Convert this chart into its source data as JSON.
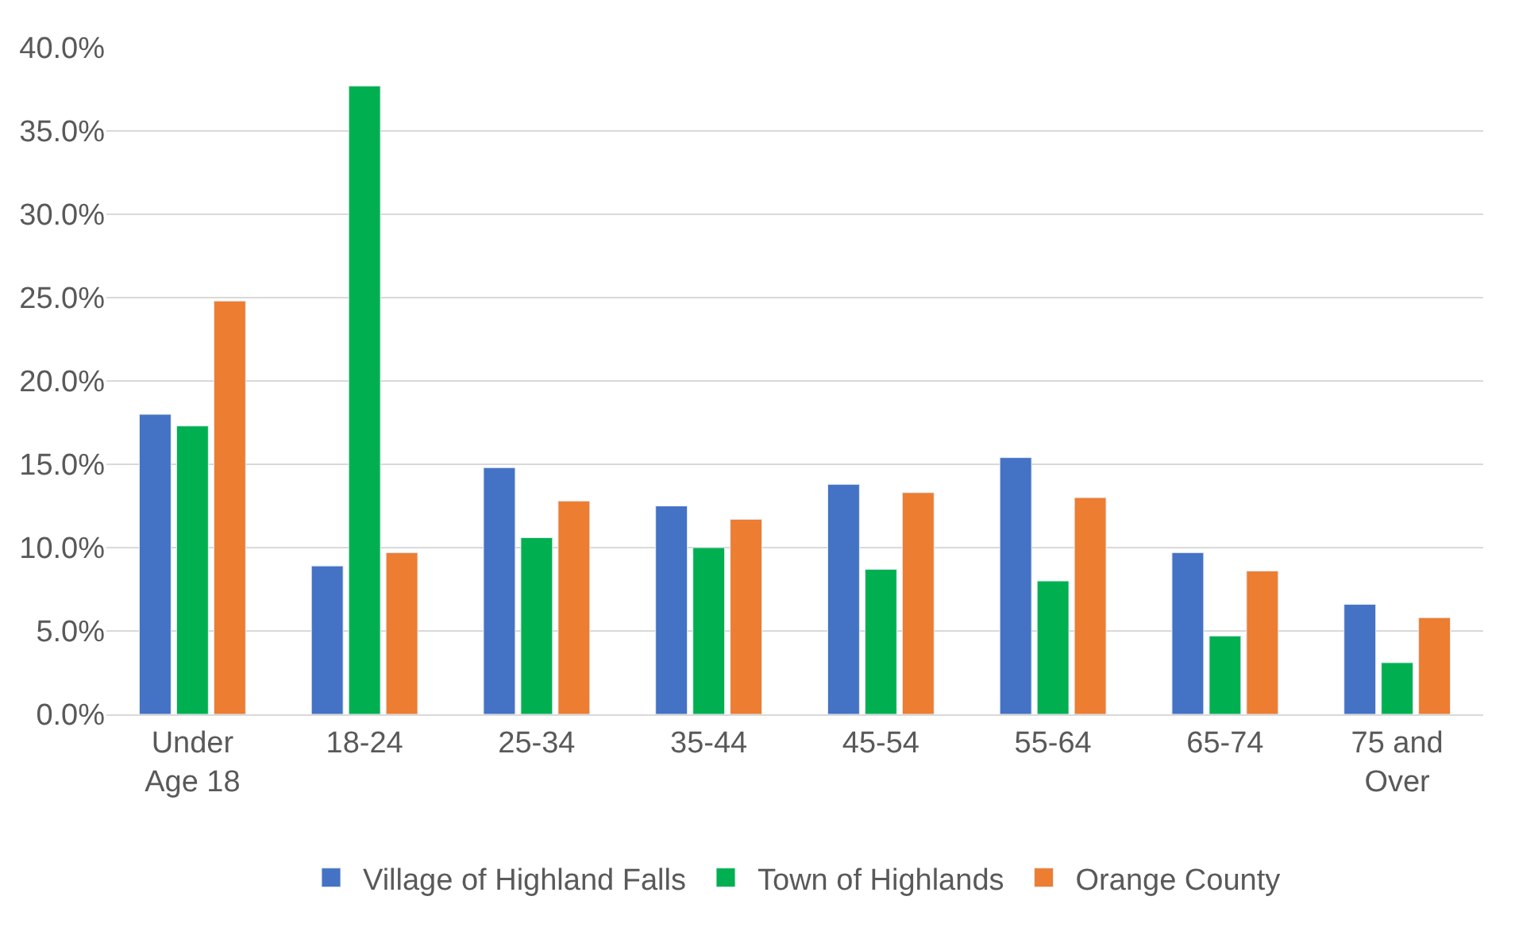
{
  "chart_data": {
    "type": "bar",
    "categories": [
      "Under Age 18",
      "18-24",
      "25-34",
      "35-44",
      "45-54",
      "55-64",
      "65-74",
      "75 and Over"
    ],
    "series": [
      {
        "name": "Village of Highland Falls",
        "color": "#4472c4",
        "values": [
          18.0,
          8.9,
          14.8,
          12.5,
          13.8,
          15.4,
          9.7,
          6.6
        ]
      },
      {
        "name": "Town of Highlands",
        "color": "#00b050",
        "values": [
          17.3,
          37.7,
          10.6,
          10.0,
          8.7,
          8.0,
          4.7,
          3.1
        ]
      },
      {
        "name": "Orange County",
        "color": "#ed7d31",
        "values": [
          24.8,
          9.7,
          12.8,
          11.7,
          13.3,
          13.0,
          8.6,
          5.8
        ]
      }
    ],
    "ylim": [
      0,
      40
    ],
    "yticks": [
      {
        "value": 0,
        "label": "0.0%"
      },
      {
        "value": 5,
        "label": "5.0%"
      },
      {
        "value": 10,
        "label": "10.0%"
      },
      {
        "value": 15,
        "label": "15.0%"
      },
      {
        "value": 20,
        "label": "20.0%"
      },
      {
        "value": 25,
        "label": "25.0%"
      },
      {
        "value": 30,
        "label": "30.0%"
      },
      {
        "value": 35,
        "label": "35.0%"
      },
      {
        "value": 40,
        "label": "40.0%"
      }
    ],
    "grid": "y",
    "legend": "bottom"
  }
}
